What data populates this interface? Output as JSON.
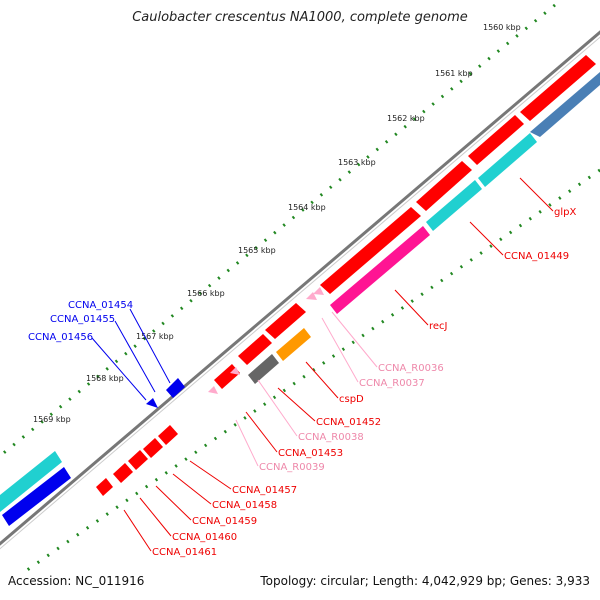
{
  "title": "Caulobacter crescentus NA1000, complete genome",
  "accession": "Accession: NC_011916",
  "summary": "Topology: circular; Length: 4,042,929 bp; Genes: 3,933",
  "colors": {
    "backbone": "#777777",
    "forward_red": "#ff0000",
    "reverse_red": "#ee0000",
    "steelblue": "#4a7fb5",
    "cyan": "#20d0d0",
    "pink": "#ff1493",
    "orange": "#ff9900",
    "dark_grey": "#666666",
    "light_pink": "#ffaacc",
    "blue": "#0000ee",
    "ticks": "#228822"
  },
  "kbp_ticks": [
    "1560 kbp",
    "1561 kbp",
    "1562 kbp",
    "1563 kbp",
    "1564 kbp",
    "1565 kbp",
    "1566 kbp",
    "1567 kbp",
    "1568 kbp",
    "1569 kbp"
  ],
  "labels": [
    {
      "id": "glpX",
      "text": "glpX",
      "group": "red"
    },
    {
      "id": "CCNA_01449",
      "text": "CCNA_01449",
      "group": "red"
    },
    {
      "id": "recJ",
      "text": "recJ",
      "group": "red"
    },
    {
      "id": "CCNA_R0036",
      "text": "CCNA_R0036",
      "group": "pink"
    },
    {
      "id": "CCNA_R0037",
      "text": "CCNA_R0037",
      "group": "pink"
    },
    {
      "id": "cspD",
      "text": "cspD",
      "group": "red"
    },
    {
      "id": "CCNA_01452",
      "text": "CCNA_01452",
      "group": "red"
    },
    {
      "id": "CCNA_R0038",
      "text": "CCNA_R0038",
      "group": "pink"
    },
    {
      "id": "CCNA_01453",
      "text": "CCNA_01453",
      "group": "red"
    },
    {
      "id": "CCNA_R0039",
      "text": "CCNA_R0039",
      "group": "pink"
    },
    {
      "id": "CCNA_01457",
      "text": "CCNA_01457",
      "group": "red"
    },
    {
      "id": "CCNA_01458",
      "text": "CCNA_01458",
      "group": "red"
    },
    {
      "id": "CCNA_01459",
      "text": "CCNA_01459",
      "group": "red"
    },
    {
      "id": "CCNA_01460",
      "text": "CCNA_01460",
      "group": "red"
    },
    {
      "id": "CCNA_01461",
      "text": "CCNA_01461",
      "group": "red"
    },
    {
      "id": "CCNA_01454",
      "text": "CCNA_01454",
      "group": "blue"
    },
    {
      "id": "CCNA_01455",
      "text": "CCNA_01455",
      "group": "blue"
    },
    {
      "id": "CCNA_01456",
      "text": "CCNA_01456",
      "group": "blue"
    }
  ]
}
